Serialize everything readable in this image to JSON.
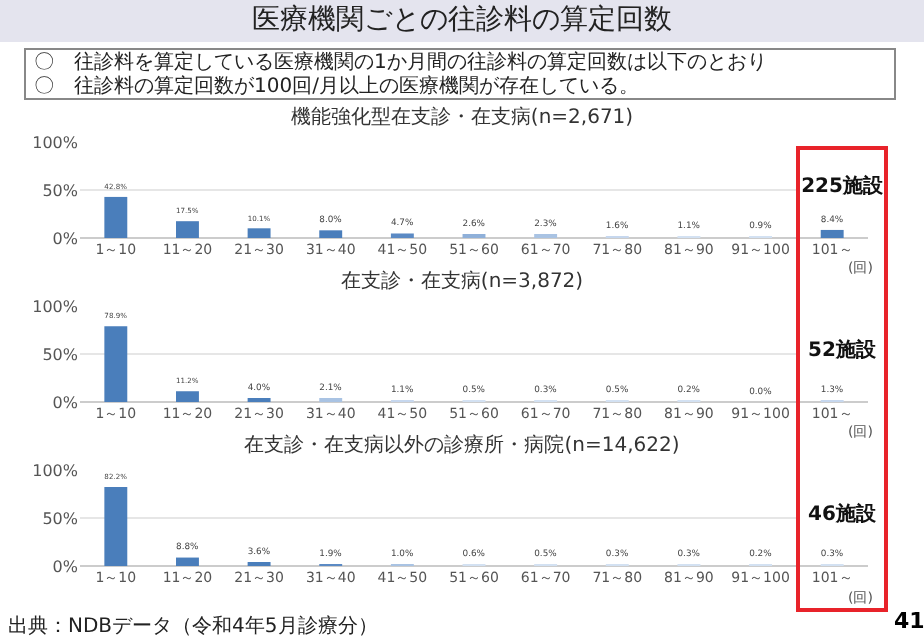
{
  "chart_data": [
    {
      "type": "bar",
      "title": "機能強化型在支診・在支病(n=2,671)",
      "xlabel": "(回)",
      "categories": [
        "1～10",
        "11～20",
        "21～30",
        "31～40",
        "41～50",
        "51～60",
        "61～70",
        "71～80",
        "81～90",
        "91～100",
        "101～"
      ],
      "values": [
        42.8,
        17.5,
        10.1,
        8.0,
        4.7,
        2.6,
        2.3,
        1.6,
        1.1,
        0.9,
        8.4
      ],
      "value_labels": [
        "42.8%",
        "17.5%",
        "10.1%",
        "8.0%",
        "4.7%",
        "2.6%",
        "2.3%",
        "1.6%",
        "1.1%",
        "0.9%",
        "8.4%"
      ],
      "colors": [
        "#4a7ebb",
        "#4a7ebb",
        "#4a7ebb",
        "#4a7ebb",
        "#5b8ac4",
        "#8fb0d9",
        "#a9c3e3",
        "#c6d7ee",
        "#d3e1f2",
        "#d3e1f2",
        "#4a7ebb"
      ],
      "ylim": [
        0,
        100
      ],
      "yticks": [
        {
          "value": 0,
          "label": "0%"
        },
        {
          "value": 50,
          "label": "50%"
        },
        {
          "value": 100,
          "label": "100%"
        }
      ],
      "grid": "y",
      "annotations": [
        "医療機関ごとの往診料の算定回数",
        "〇　往診料を算定している医療機関の1か月間の往診料の算定回数は以下のとおり",
        "〇　往診料の算定回数が100回/月以上の医療機関が存在している。",
        "225施設"
      ]
    },
    {
      "type": "bar",
      "title": "在支診・在支病(n=3,872)",
      "xlabel": "(回)",
      "categories": [
        "1～10",
        "11～20",
        "21～30",
        "31～40",
        "41～50",
        "51～60",
        "61～70",
        "71～80",
        "81～90",
        "91～100",
        "101～"
      ],
      "values": [
        78.9,
        11.2,
        4.0,
        2.1,
        1.1,
        0.5,
        0.3,
        0.5,
        0.2,
        0.0,
        1.3
      ],
      "value_labels": [
        "78.9%",
        "11.2%",
        "4.0%",
        "2.1%",
        "1.1%",
        "0.5%",
        "0.3%",
        "0.5%",
        "0.2%",
        "0.0%",
        "1.3%"
      ],
      "colors": [
        "#4a7ebb",
        "#4a7ebb",
        "#4a7ebb",
        "#a9c3e3",
        "#c6d7ee",
        "#d3e1f2",
        "#d3e1f2",
        "#d3e1f2",
        "#d3e1f2",
        "#d3e1f2",
        "#c6d7ee"
      ],
      "ylim": [
        0,
        100
      ],
      "yticks": [
        {
          "value": 0,
          "label": "0%"
        },
        {
          "value": 50,
          "label": "50%"
        },
        {
          "value": 100,
          "label": "100%"
        }
      ],
      "grid": "y",
      "annotations": [
        "52施設"
      ]
    },
    {
      "type": "bar",
      "title": "在支診・在支病以外の診療所・病院(n=14,622)",
      "xlabel": "(回)",
      "categories": [
        "1～10",
        "11～20",
        "21～30",
        "31～40",
        "41～50",
        "51～60",
        "61～70",
        "71～80",
        "81～90",
        "91～100",
        "101～"
      ],
      "values": [
        82.2,
        8.8,
        3.6,
        1.9,
        1.0,
        0.6,
        0.5,
        0.3,
        0.3,
        0.2,
        0.3
      ],
      "value_labels": [
        "82.2%",
        "8.8%",
        "3.6%",
        "1.9%",
        "1.0%",
        "0.6%",
        "0.5%",
        "0.3%",
        "0.3%",
        "0.2%",
        "0.3%"
      ],
      "colors": [
        "#4a7ebb",
        "#4a7ebb",
        "#4a7ebb",
        "#5b8ac4",
        "#a9c3e3",
        "#d3e1f2",
        "#d3e1f2",
        "#d3e1f2",
        "#d3e1f2",
        "#d3e1f2",
        "#d3e1f2"
      ],
      "ylim": [
        0,
        100
      ],
      "yticks": [
        {
          "value": 0,
          "label": "0%"
        },
        {
          "value": 50,
          "label": "50%"
        },
        {
          "value": 100,
          "label": "100%"
        }
      ],
      "grid": "y",
      "annotations": [
        "46施設",
        "出典：NDBデータ（令和4年5月診療分）",
        "41"
      ]
    }
  ]
}
